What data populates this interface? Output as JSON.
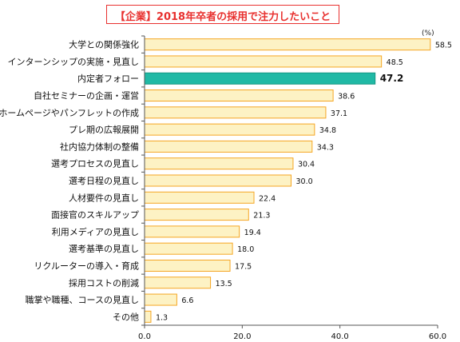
{
  "chart_data": {
    "type": "bar",
    "orientation": "horizontal",
    "title": "【企業】2018年卒者の採用で注力したいこと",
    "unit": "(%)",
    "categories": [
      "大学との関係強化",
      "インターンシップの実施・見直し",
      "内定者フォロー",
      "自社セミナーの企画・運営",
      "ホームページやパンフレットの作成",
      "プレ期の広報展開",
      "社内協力体制の整備",
      "選考プロセスの見直し",
      "選考日程の見直し",
      "人材要件の見直し",
      "面接官のスキルアップ",
      "利用メディアの見直し",
      "選考基準の見直し",
      "リクルーターの導入・育成",
      "採用コストの削減",
      "職掌や職種、コースの見直し",
      "その他"
    ],
    "values": [
      58.5,
      48.5,
      47.2,
      38.6,
      37.1,
      34.8,
      34.3,
      30.4,
      30.0,
      22.4,
      21.3,
      19.4,
      18.0,
      17.5,
      13.5,
      6.6,
      1.3
    ],
    "value_labels": [
      "58.5",
      "48.5",
      "47.2",
      "38.6",
      "37.1",
      "34.8",
      "34.3",
      "30.4",
      "30.0",
      "22.4",
      "21.3",
      "19.4",
      "18.0",
      "17.5",
      "13.5",
      "6.6",
      "1.3"
    ],
    "highlight": "内定者フォロー",
    "xlim": [
      0,
      60
    ],
    "x_ticks": [
      "0.0",
      "20.0",
      "40.0",
      "60.0"
    ],
    "grid": false,
    "colors": {
      "bar": "#fdf2c4",
      "bar_border": "#f5a623",
      "highlight": "#20b9a5",
      "highlight_border": "#169684",
      "axis": "#555555",
      "title": "#e8312f"
    }
  }
}
